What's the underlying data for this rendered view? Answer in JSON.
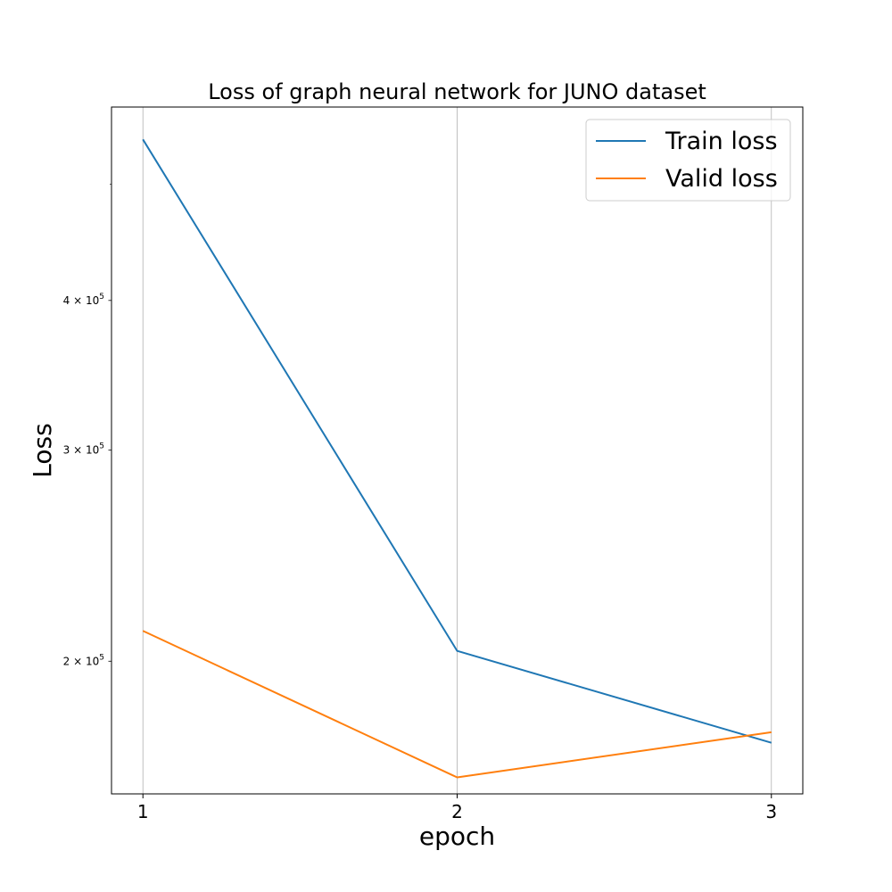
{
  "chart_data": {
    "type": "line",
    "title": "Loss of graph neural network for JUNO dataset",
    "xlabel": "epoch",
    "ylabel": "Loss",
    "x": [
      1,
      2,
      3
    ],
    "x_ticks": [
      1,
      2,
      3
    ],
    "x_tick_labels": [
      "1",
      "2",
      "3"
    ],
    "xlim": [
      0.9,
      3.1
    ],
    "yscale": "log",
    "ylim": [
      155000,
      580000
    ],
    "y_ticks": [
      {
        "value": 200000,
        "mantissa": "2",
        "base": "10",
        "exp": "5"
      },
      {
        "value": 300000,
        "mantissa": "3",
        "base": "10",
        "exp": "5"
      },
      {
        "value": 400000,
        "mantissa": "4",
        "base": "10",
        "exp": "5"
      }
    ],
    "y_minor_ticks": [
      500000
    ],
    "series": [
      {
        "name": "Train loss",
        "color": "#1f77b4",
        "values": [
          545000,
          204000,
          171000
        ]
      },
      {
        "name": "Valid loss",
        "color": "#ff7f0e",
        "values": [
          212000,
          160000,
          174500
        ]
      }
    ],
    "legend_position": "top-right",
    "grid": "x-only"
  }
}
